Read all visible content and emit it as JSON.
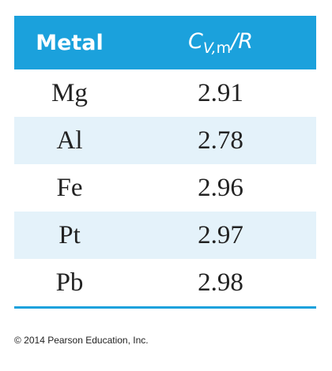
{
  "table": {
    "header": {
      "metal": "Metal",
      "quantity": {
        "symbol": "C",
        "sub_italic": "V,",
        "sub_roman": "m",
        "suffix": "/R"
      }
    },
    "rows": [
      [
        "Mg",
        2.91
      ],
      [
        "Al",
        2.78
      ],
      [
        "Fe",
        2.96
      ],
      [
        "Pt",
        2.97
      ],
      [
        "Pb",
        2.98
      ]
    ]
  },
  "footer": {
    "copyright": "© 2014 Pearson Education, Inc."
  }
}
